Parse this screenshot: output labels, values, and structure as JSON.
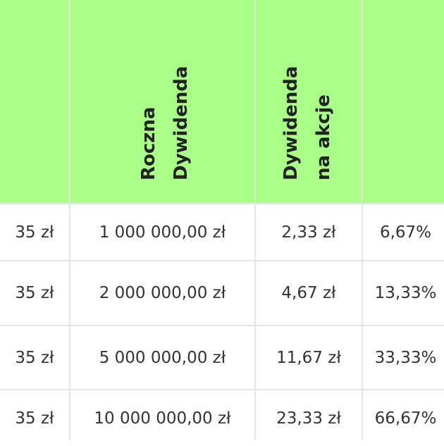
{
  "header": {
    "col1": "",
    "col2_line1": "Roczna",
    "col2_line2": "Dywidenda",
    "col3_line1": "Dywidenda",
    "col3_line2": "na akcje",
    "col4": ""
  },
  "rows": [
    {
      "price": "35 zł",
      "dividend": "1 000 000,00 zł",
      "per_share": "2,33 zł",
      "yield": "6,67%"
    },
    {
      "price": "35 zł",
      "dividend": "2 000 000,00 zł",
      "per_share": "4,67 zł",
      "yield": "13,33%"
    },
    {
      "price": "35 zł",
      "dividend": "5 000 000,00 zł",
      "per_share": "11,67 zł",
      "yield": "33,33%"
    },
    {
      "price": "35 zł",
      "dividend": "10 000 000,00 zł",
      "per_share": "23,33 zł",
      "yield": "66,67%"
    }
  ],
  "colors": {
    "header_bg": "#aaff88",
    "grid": "#e6e6e6"
  }
}
